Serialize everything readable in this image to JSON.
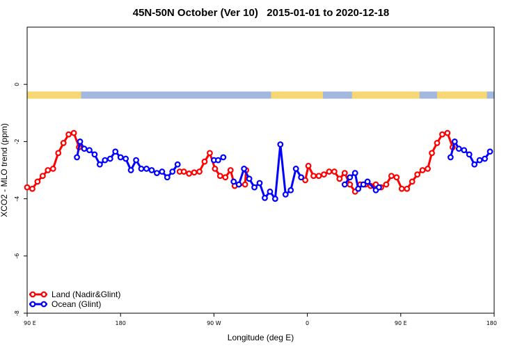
{
  "chart_data": {
    "type": "line",
    "title": "45N-50N October (Ver 10)   2015-01-01 to 2020-12-18",
    "xlabel": "Longitude (deg E)",
    "ylabel": "XCO2 - MLO trend (ppm)",
    "xlim": [
      90,
      540
    ],
    "ylim": [
      -8,
      2
    ],
    "x_ticks": [
      {
        "value": 90,
        "label": "90 E"
      },
      {
        "value": 180,
        "label": "180"
      },
      {
        "value": 270,
        "label": "90 W"
      },
      {
        "value": 360,
        "label": "0"
      },
      {
        "value": 450,
        "label": "90 E"
      },
      {
        "value": 540,
        "label": "180"
      }
    ],
    "y_ticks": [
      {
        "value": 0,
        "label": "0"
      },
      {
        "value": -2,
        "label": "-2"
      },
      {
        "value": -4,
        "label": "-4"
      },
      {
        "value": -6,
        "label": "-6"
      },
      {
        "value": -8,
        "label": "-8"
      }
    ],
    "grid": false,
    "legend_position": "bottom-left",
    "land_ocean_strip": {
      "y_range": [
        -0.5,
        -0.25
      ],
      "colors": {
        "land": "#f7d774",
        "ocean": "#a3b8df"
      },
      "segments": [
        {
          "type": "land",
          "from": 90,
          "to": 142
        },
        {
          "type": "ocean",
          "from": 142,
          "to": 325
        },
        {
          "type": "land",
          "from": 325,
          "to": 375
        },
        {
          "type": "ocean",
          "from": 375,
          "to": 403
        },
        {
          "type": "land",
          "from": 403,
          "to": 468
        },
        {
          "type": "ocean",
          "from": 468,
          "to": 485
        },
        {
          "type": "land",
          "from": 485,
          "to": 533
        },
        {
          "type": "ocean",
          "from": 533,
          "to": 540
        }
      ]
    },
    "series": [
      {
        "name": "Land (Nadir&Glint)",
        "color": "#ff0000",
        "segments": [
          [
            [
              90,
              -3.6
            ],
            [
              95,
              -3.65
            ],
            [
              100,
              -3.4
            ],
            [
              105,
              -3.2
            ],
            [
              110,
              -3.0
            ],
            [
              115,
              -2.95
            ],
            [
              120,
              -2.4
            ],
            [
              125,
              -2.05
            ],
            [
              130,
              -1.75
            ],
            [
              135,
              -1.7
            ],
            [
              140,
              -2.2
            ]
          ],
          [
            [
              237,
              -3.05
            ],
            [
              241,
              -3.05
            ],
            [
              246,
              -3.12
            ],
            [
              251,
              -3.08
            ],
            [
              256,
              -3.05
            ],
            [
              261,
              -2.7
            ],
            [
              266,
              -2.4
            ],
            [
              271,
              -2.95
            ],
            [
              276,
              -3.2
            ],
            [
              281,
              -3.25
            ],
            [
              286,
              -3.0
            ],
            [
              290,
              -3.55
            ],
            [
              300,
              -3.5
            ],
            [
              301,
              -3.0
            ]
          ],
          [
            [
              358,
              -3.35
            ],
            [
              361,
              -2.85
            ],
            [
              366,
              -3.2
            ],
            [
              371,
              -3.2
            ],
            [
              376,
              -3.15
            ],
            [
              381,
              -3.05
            ],
            [
              386,
              -3.05
            ],
            [
              391,
              -3.3
            ],
            [
              396,
              -3.1
            ],
            [
              401,
              -3.5
            ],
            [
              406,
              -3.75
            ],
            [
              411,
              -3.5
            ],
            [
              416,
              -3.5
            ],
            [
              421,
              -3.55
            ],
            [
              426,
              -3.5
            ],
            [
              431,
              -3.6
            ],
            [
              436,
              -3.5
            ],
            [
              441,
              -3.2
            ],
            [
              446,
              -3.25
            ],
            [
              451,
              -3.65
            ],
            [
              456,
              -3.65
            ],
            [
              461,
              -3.4
            ],
            [
              466,
              -3.15
            ],
            [
              471,
              -3.0
            ],
            [
              476,
              -2.95
            ],
            [
              480,
              -2.4
            ],
            [
              485,
              -2.05
            ],
            [
              490,
              -1.75
            ],
            [
              495,
              -1.7
            ],
            [
              500,
              -2.2
            ]
          ]
        ]
      },
      {
        "name": "Ocean (Glint)",
        "color": "#0000ff",
        "segments": [
          [
            [
              138,
              -2.55
            ],
            [
              141,
              -2.0
            ],
            [
              145,
              -2.25
            ],
            [
              150,
              -2.3
            ],
            [
              155,
              -2.45
            ],
            [
              160,
              -2.8
            ],
            [
              165,
              -2.65
            ],
            [
              170,
              -2.6
            ],
            [
              175,
              -2.35
            ],
            [
              180,
              -2.55
            ],
            [
              185,
              -2.6
            ],
            [
              190,
              -3.0
            ],
            [
              195,
              -2.65
            ],
            [
              200,
              -2.95
            ],
            [
              205,
              -2.95
            ],
            [
              210,
              -3.0
            ],
            [
              215,
              -3.1
            ],
            [
              220,
              -3.05
            ],
            [
              225,
              -3.25
            ],
            [
              230,
              -3.05
            ],
            [
              235,
              -2.8
            ]
          ],
          [
            [
              270,
              -2.65
            ],
            [
              274,
              -2.65
            ],
            [
              279,
              -2.55
            ]
          ],
          [
            [
              289,
              -3.4
            ],
            [
              294,
              -3.5
            ],
            [
              299,
              -2.95
            ],
            [
              304,
              -3.3
            ],
            [
              309,
              -3.6
            ],
            [
              314,
              -3.45
            ],
            [
              319,
              -3.97
            ],
            [
              324,
              -3.75
            ],
            [
              329,
              -4.0
            ],
            [
              334,
              -2.1
            ],
            [
              339,
              -3.85
            ],
            [
              344,
              -3.7
            ],
            [
              349,
              -2.95
            ],
            [
              354,
              -3.25
            ]
          ],
          [
            [
              396,
              -3.5
            ],
            [
              401,
              -3.25
            ],
            [
              406,
              -3.1
            ],
            [
              409,
              -3.65
            ],
            [
              414,
              -3.5
            ],
            [
              418,
              -3.4
            ],
            [
              426,
              -3.7
            ],
            [
              429,
              -3.6
            ]
          ],
          [
            [
              498,
              -2.55
            ],
            [
              502,
              -2.0
            ],
            [
              506,
              -2.25
            ],
            [
              511,
              -2.3
            ],
            [
              516,
              -2.45
            ],
            [
              521,
              -2.8
            ],
            [
              526,
              -2.65
            ],
            [
              531,
              -2.6
            ],
            [
              536,
              -2.35
            ]
          ]
        ]
      }
    ]
  }
}
